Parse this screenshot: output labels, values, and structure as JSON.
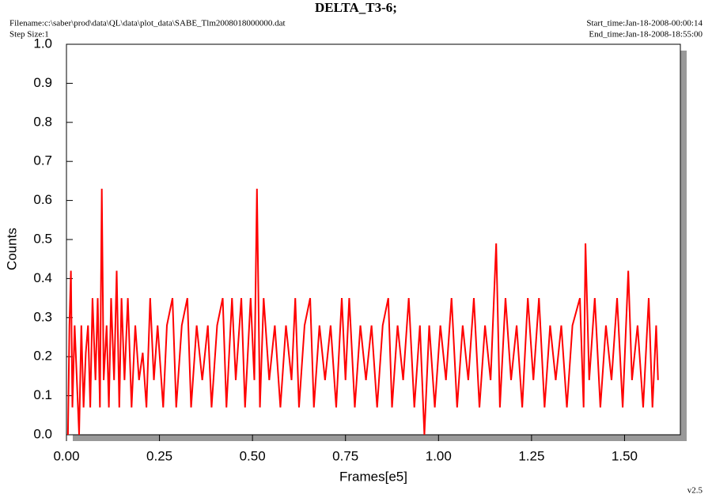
{
  "chart_data": {
    "type": "line",
    "title": "DELTA_T3-6;",
    "filename": "Filename:c:\\saber\\prod\\data\\QL\\data\\plot_data\\SABE_Tlm2008018000000.dat",
    "step_size": "Step Size:1",
    "start_time": "Start_time:Jan-18-2008-00:00:14",
    "end_time": "End_time:Jan-18-2008-18:55:00",
    "version": "v2.5",
    "x_label": "Frames[e5]",
    "y_label": "Counts",
    "xlim": [
      0,
      1.65
    ],
    "ylim": [
      0,
      1
    ],
    "xticks": [
      {
        "value": 0,
        "label": "0.00"
      },
      0.25,
      {
        "value": 0.5,
        "label": "0.50"
      },
      0.75,
      {
        "value": 1,
        "label": "1.00"
      },
      1.25,
      {
        "value": 1.5,
        "label": "1.50"
      }
    ],
    "yticks": [
      {
        "value": 0,
        "label": "0.0"
      },
      0.1,
      0.2,
      0.3,
      0.4,
      0.5,
      0.6,
      0.7,
      0.8,
      0.9,
      {
        "value": 1,
        "label": "1.0"
      }
    ],
    "series": [
      {
        "color": "#ff0000",
        "x": [
          0.004,
          0.008,
          0.012,
          0.016,
          0.022,
          0.028,
          0.034,
          0.04,
          0.046,
          0.052,
          0.058,
          0.064,
          0.07,
          0.078,
          0.084,
          0.09,
          0.095,
          0.1,
          0.108,
          0.114,
          0.12,
          0.128,
          0.135,
          0.142,
          0.148,
          0.156,
          0.165,
          0.175,
          0.185,
          0.195,
          0.205,
          0.215,
          0.225,
          0.235,
          0.245,
          0.26,
          0.27,
          0.285,
          0.295,
          0.31,
          0.325,
          0.335,
          0.35,
          0.365,
          0.38,
          0.39,
          0.405,
          0.42,
          0.43,
          0.445,
          0.455,
          0.47,
          0.48,
          0.495,
          0.505,
          0.512,
          0.52,
          0.53,
          0.545,
          0.56,
          0.575,
          0.59,
          0.605,
          0.615,
          0.625,
          0.64,
          0.655,
          0.665,
          0.68,
          0.695,
          0.71,
          0.725,
          0.74,
          0.75,
          0.76,
          0.775,
          0.79,
          0.805,
          0.82,
          0.835,
          0.85,
          0.865,
          0.875,
          0.89,
          0.905,
          0.92,
          0.935,
          0.95,
          0.962,
          0.975,
          0.99,
          1.005,
          1.02,
          1.035,
          1.05,
          1.065,
          1.08,
          1.095,
          1.11,
          1.125,
          1.14,
          1.155,
          1.165,
          1.18,
          1.195,
          1.21,
          1.225,
          1.24,
          1.255,
          1.27,
          1.285,
          1.3,
          1.315,
          1.33,
          1.345,
          1.36,
          1.38,
          1.39,
          1.395,
          1.405,
          1.42,
          1.435,
          1.45,
          1.465,
          1.48,
          1.495,
          1.51,
          1.52,
          1.535,
          1.55,
          1.565,
          1.575,
          1.585,
          1.59
        ],
        "values": [
          0.0,
          0.28,
          0.42,
          0.07,
          0.28,
          0.14,
          0.0,
          0.28,
          0.07,
          0.21,
          0.28,
          0.07,
          0.35,
          0.14,
          0.35,
          0.07,
          0.63,
          0.14,
          0.28,
          0.07,
          0.35,
          0.14,
          0.42,
          0.07,
          0.35,
          0.14,
          0.35,
          0.07,
          0.28,
          0.14,
          0.21,
          0.07,
          0.35,
          0.14,
          0.28,
          0.07,
          0.28,
          0.35,
          0.07,
          0.28,
          0.35,
          0.07,
          0.28,
          0.14,
          0.28,
          0.07,
          0.28,
          0.35,
          0.07,
          0.35,
          0.14,
          0.35,
          0.07,
          0.35,
          0.14,
          0.63,
          0.07,
          0.35,
          0.14,
          0.28,
          0.07,
          0.28,
          0.14,
          0.35,
          0.07,
          0.28,
          0.35,
          0.07,
          0.28,
          0.14,
          0.28,
          0.07,
          0.35,
          0.14,
          0.35,
          0.07,
          0.28,
          0.14,
          0.28,
          0.07,
          0.28,
          0.35,
          0.07,
          0.28,
          0.14,
          0.35,
          0.07,
          0.28,
          0.0,
          0.28,
          0.07,
          0.28,
          0.14,
          0.35,
          0.07,
          0.28,
          0.14,
          0.35,
          0.07,
          0.28,
          0.14,
          0.49,
          0.07,
          0.35,
          0.14,
          0.28,
          0.07,
          0.35,
          0.14,
          0.35,
          0.07,
          0.28,
          0.14,
          0.28,
          0.07,
          0.28,
          0.35,
          0.07,
          0.49,
          0.14,
          0.35,
          0.07,
          0.28,
          0.14,
          0.35,
          0.07,
          0.42,
          0.14,
          0.28,
          0.07,
          0.35,
          0.07,
          0.28,
          0.14
        ]
      }
    ]
  }
}
